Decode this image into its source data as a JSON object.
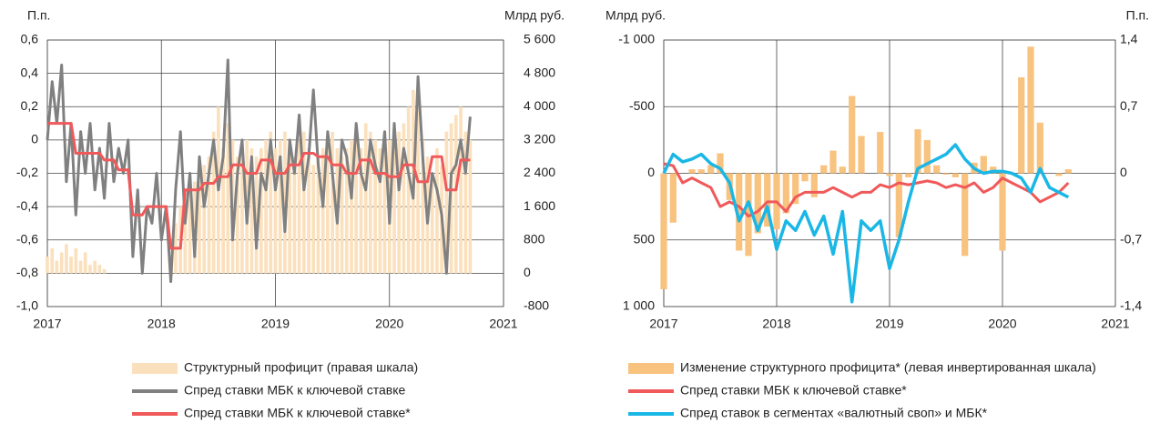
{
  "chart_data": [
    {
      "type": "combo",
      "ylabel": "П.п.",
      "y2label": "Млрд руб.",
      "xlim": [
        2017,
        2021
      ],
      "xticks": [
        2017,
        2018,
        2019,
        2020,
        2021
      ],
      "ylim": [
        -1,
        0.6
      ],
      "yticks": [
        {
          "value": 0.6,
          "label": "0,6"
        },
        {
          "value": 0.4,
          "label": "0,4"
        },
        {
          "value": 0.2,
          "label": "0,2"
        },
        0,
        {
          "value": -0.2,
          "label": "-0,2"
        },
        {
          "value": -0.4,
          "label": "-0,4"
        },
        {
          "value": -0.6,
          "label": "-0,6"
        },
        {
          "value": -0.8,
          "label": "-0,8"
        },
        {
          "value": -1,
          "label": "-1,0"
        }
      ],
      "y2lim": [
        -800,
        5600
      ],
      "y2ticks": [
        {
          "value": 5600,
          "label": "5 600"
        },
        {
          "value": 4800,
          "label": "4 800"
        },
        {
          "value": 4000,
          "label": "4 000"
        },
        {
          "value": 3200,
          "label": "3 200"
        },
        {
          "value": 2400,
          "label": "2 400"
        },
        {
          "value": 1600,
          "label": "1 600"
        },
        800,
        0,
        -800
      ],
      "grid": true,
      "x": [
        2017,
        2017.042,
        2017.083,
        2017.125,
        2017.167,
        2017.208,
        2017.25,
        2017.292,
        2017.333,
        2017.375,
        2017.417,
        2017.458,
        2017.5,
        2017.542,
        2017.583,
        2017.625,
        2017.667,
        2017.708,
        2017.75,
        2017.792,
        2017.833,
        2017.875,
        2017.917,
        2017.958,
        2018,
        2018.042,
        2018.083,
        2018.125,
        2018.167,
        2018.208,
        2018.25,
        2018.292,
        2018.333,
        2018.375,
        2018.417,
        2018.458,
        2018.5,
        2018.542,
        2018.583,
        2018.625,
        2018.667,
        2018.708,
        2018.75,
        2018.792,
        2018.833,
        2018.875,
        2018.917,
        2018.958,
        2019,
        2019.042,
        2019.083,
        2019.125,
        2019.167,
        2019.208,
        2019.25,
        2019.292,
        2019.333,
        2019.375,
        2019.417,
        2019.458,
        2019.5,
        2019.542,
        2019.583,
        2019.625,
        2019.667,
        2019.708,
        2019.75,
        2019.792,
        2019.833,
        2019.875,
        2019.917,
        2019.958,
        2020,
        2020.042,
        2020.083,
        2020.125,
        2020.167,
        2020.208,
        2020.25,
        2020.292,
        2020.333,
        2020.375,
        2020.417,
        2020.458,
        2020.5,
        2020.542,
        2020.583,
        2020.625,
        2020.667,
        2020.708
      ],
      "series": [
        {
          "name": "Структурный профицит (правая шкала)",
          "type": "bar",
          "axis": "y2",
          "color": "#fbe0bd",
          "values": [
            400,
            600,
            300,
            500,
            700,
            400,
            600,
            300,
            500,
            200,
            300,
            200,
            100,
            0,
            0,
            0,
            0,
            0,
            0,
            0,
            0,
            0,
            0,
            0,
            0,
            0,
            200,
            1200,
            1600,
            1800,
            2000,
            2200,
            2400,
            2600,
            2800,
            3400,
            4000,
            3000,
            3600,
            3200,
            2800,
            3000,
            3200,
            3000,
            2800,
            3000,
            3200,
            3400,
            3000,
            3200,
            3400,
            3000,
            2800,
            3200,
            3400,
            3000,
            2600,
            2800,
            3000,
            3200,
            3400,
            3000,
            2800,
            3000,
            3200,
            3400,
            3000,
            3600,
            3400,
            3200,
            3000,
            3400,
            3200,
            3000,
            3400,
            3600,
            4000,
            4400,
            4000,
            3200,
            2800,
            2400,
            3000,
            2600,
            3400,
            3600,
            3800,
            4000,
            3400,
            3200
          ]
        },
        {
          "name": "Спред ставки МБК к ключевой ставке",
          "type": "line",
          "color": "#808080",
          "width": 3,
          "values": [
            0,
            0.35,
            0.1,
            0.45,
            -0.25,
            0.1,
            -0.45,
            0.05,
            -0.2,
            0.1,
            -0.3,
            -0.05,
            -0.35,
            0.1,
            -0.25,
            -0.05,
            -0.2,
            0,
            -0.7,
            -0.3,
            -0.8,
            -0.4,
            -0.5,
            -0.2,
            -0.6,
            -0.4,
            -0.85,
            -0.3,
            0.05,
            -0.5,
            -0.2,
            -0.7,
            -0.1,
            -0.4,
            -0.2,
            0,
            -0.3,
            -0.1,
            0.48,
            -0.6,
            -0.2,
            0,
            -0.5,
            -0.1,
            -0.65,
            -0.2,
            -0.3,
            0,
            -0.3,
            -0.1,
            -0.55,
            0,
            -0.2,
            0.15,
            -0.3,
            -0.1,
            0.3,
            -0.15,
            -0.4,
            0.05,
            -0.2,
            -0.5,
            0,
            -0.1,
            -0.35,
            0.1,
            -0.2,
            -0.3,
            0,
            -0.15,
            -0.25,
            0.05,
            -0.5,
            0.1,
            -0.3,
            -0.05,
            -0.2,
            -0.35,
            0.38,
            -0.1,
            -0.5,
            -0.2,
            -0.3,
            -0.45,
            -0.8,
            -0.2,
            -0.15,
            0,
            -0.2,
            0.14
          ]
        },
        {
          "name": "Спред ставки МБК к ключевой ставке*",
          "type": "line",
          "color": "#f0595a",
          "width": 3,
          "values": [
            0.1,
            0.1,
            0.1,
            0.1,
            0.1,
            0.1,
            -0.08,
            -0.08,
            -0.08,
            -0.08,
            -0.08,
            -0.08,
            -0.12,
            -0.12,
            -0.12,
            -0.18,
            -0.18,
            -0.18,
            -0.45,
            -0.45,
            -0.45,
            -0.4,
            -0.4,
            -0.4,
            -0.4,
            -0.4,
            -0.65,
            -0.65,
            -0.65,
            -0.3,
            -0.3,
            -0.3,
            -0.3,
            -0.26,
            -0.26,
            -0.26,
            -0.22,
            -0.22,
            -0.22,
            -0.15,
            -0.15,
            -0.15,
            -0.2,
            -0.2,
            -0.2,
            -0.12,
            -0.12,
            -0.12,
            -0.2,
            -0.2,
            -0.2,
            -0.15,
            -0.15,
            -0.15,
            -0.08,
            -0.08,
            -0.08,
            -0.1,
            -0.1,
            -0.1,
            -0.15,
            -0.15,
            -0.15,
            -0.2,
            -0.2,
            -0.2,
            -0.12,
            -0.12,
            -0.12,
            -0.2,
            -0.2,
            -0.2,
            -0.22,
            -0.22,
            -0.22,
            -0.15,
            -0.15,
            -0.15,
            -0.25,
            -0.25,
            -0.25,
            -0.1,
            -0.1,
            -0.1,
            -0.3,
            -0.3,
            -0.3,
            -0.12,
            -0.12,
            -0.12
          ]
        }
      ]
    },
    {
      "type": "combo",
      "ylabel": "Млрд руб.",
      "y2label": "П.п.",
      "xlim": [
        2017,
        2021
      ],
      "xticks": [
        2017,
        2018,
        2019,
        2020,
        2021
      ],
      "ylim": [
        -1000,
        1000
      ],
      "y_inverted": true,
      "yticks": [
        {
          "value": -1000,
          "label": "-1 000"
        },
        -500,
        0,
        500,
        {
          "value": 1000,
          "label": "1 000"
        }
      ],
      "y2lim": [
        -1.4,
        1.4
      ],
      "y2ticks": [
        {
          "value": 1.4,
          "label": "1,4"
        },
        {
          "value": 0.7,
          "label": "0,7"
        },
        0,
        {
          "value": -0.7,
          "label": "-0,7"
        },
        {
          "value": -1.4,
          "label": "-1,4"
        }
      ],
      "grid": true,
      "x": [
        2017,
        2017.083,
        2017.167,
        2017.25,
        2017.333,
        2017.417,
        2017.5,
        2017.583,
        2017.667,
        2017.75,
        2017.833,
        2017.917,
        2018,
        2018.083,
        2018.167,
        2018.25,
        2018.333,
        2018.417,
        2018.5,
        2018.583,
        2018.667,
        2018.75,
        2018.833,
        2018.917,
        2019,
        2019.083,
        2019.167,
        2019.25,
        2019.333,
        2019.417,
        2019.5,
        2019.583,
        2019.667,
        2019.75,
        2019.833,
        2019.917,
        2020,
        2020.083,
        2020.167,
        2020.25,
        2020.333,
        2020.417,
        2020.5,
        2020.583
      ],
      "series": [
        {
          "name": "Изменение структурного профицита* (левая инвертированная шкала)",
          "type": "bar",
          "color": "#f8c27f",
          "values": [
            870,
            370,
            0,
            -30,
            -30,
            -60,
            -150,
            200,
            580,
            620,
            450,
            400,
            420,
            300,
            230,
            60,
            180,
            -60,
            -170,
            -50,
            -580,
            -280,
            0,
            -310,
            20,
            480,
            30,
            -330,
            -250,
            -60,
            10,
            30,
            620,
            -80,
            -130,
            -50,
            580,
            0,
            -720,
            -950,
            -380,
            0,
            20,
            -30
          ]
        },
        {
          "name": "Спред ставки МБК к ключевой ставке*",
          "type": "line",
          "axis": "y2",
          "color": "#f0595a",
          "width": 3,
          "values": [
            0.1,
            0.08,
            -0.1,
            -0.05,
            -0.1,
            -0.15,
            -0.35,
            -0.3,
            -0.35,
            -0.45,
            -0.4,
            -0.3,
            -0.3,
            -0.4,
            -0.25,
            -0.2,
            -0.2,
            -0.2,
            -0.15,
            -0.2,
            -0.25,
            -0.2,
            -0.2,
            -0.12,
            -0.15,
            -0.1,
            -0.12,
            -0.1,
            -0.08,
            -0.1,
            -0.15,
            -0.12,
            -0.15,
            -0.1,
            -0.2,
            -0.15,
            -0.05,
            -0.1,
            -0.15,
            -0.2,
            -0.3,
            -0.25,
            -0.2,
            -0.1
          ]
        },
        {
          "name": "Спред ставок в сегментах «валютный своп» и МБК*",
          "type": "line",
          "axis": "y2",
          "color": "#1ab7e6",
          "width": 3.5,
          "values": [
            0,
            0.2,
            0.12,
            0.15,
            0.2,
            0.1,
            0.05,
            -0.1,
            -0.5,
            -0.3,
            -0.6,
            -0.35,
            -0.8,
            -0.5,
            -0.6,
            -0.4,
            -0.65,
            -0.45,
            -0.85,
            -0.4,
            -1.35,
            -0.5,
            -0.6,
            -0.5,
            -1,
            -0.7,
            -0.3,
            0.05,
            0.1,
            0.15,
            0.2,
            0.3,
            0.15,
            0.05,
            0,
            0.02,
            0.02,
            0,
            -0.05,
            -0.2,
            0.05,
            -0.15,
            -0.2,
            -0.25
          ]
        }
      ]
    }
  ]
}
